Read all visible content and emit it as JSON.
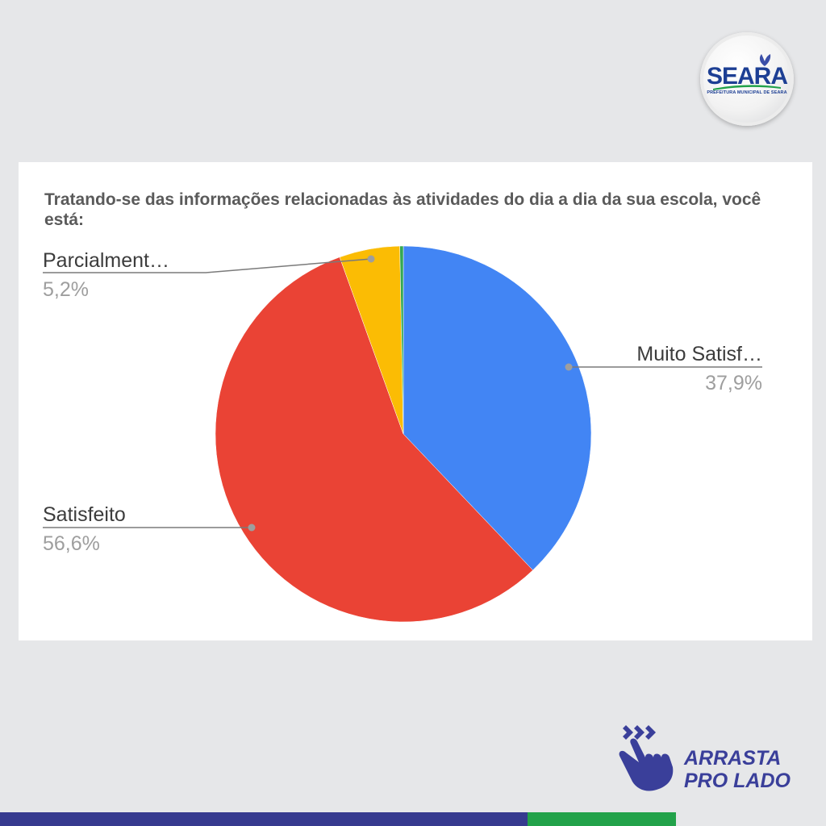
{
  "logo": {
    "wordmark": "SEARA",
    "subtitle": "PREFEITURA MUNICIPAL DE SEARA",
    "colors": {
      "primary": "#1d3f94",
      "secondary": "#22a24a"
    }
  },
  "chart_data": {
    "type": "pie",
    "title": "Tratando-se das informações relacionadas às atividades do dia a dia da sua escola, você está:",
    "slices": [
      {
        "label": "Muito Satisf…",
        "value": 37.9,
        "value_label": "37,9%",
        "color": "#4285f4"
      },
      {
        "label": "Satisfeito",
        "value": 56.6,
        "value_label": "56,6%",
        "color": "#ea4335"
      },
      {
        "label": "Parcialment…",
        "value": 5.2,
        "value_label": "5,2%",
        "color": "#fbbc04"
      },
      {
        "value": 0.3,
        "color": "#34a853"
      }
    ],
    "legend": "none"
  },
  "swipe_hint": {
    "line1": "ARRASTA",
    "line2": "PRO LADO",
    "color": "#3a3f9a"
  },
  "bottom_bar": {
    "colors": [
      "#363a8f",
      "#22a24a"
    ]
  }
}
